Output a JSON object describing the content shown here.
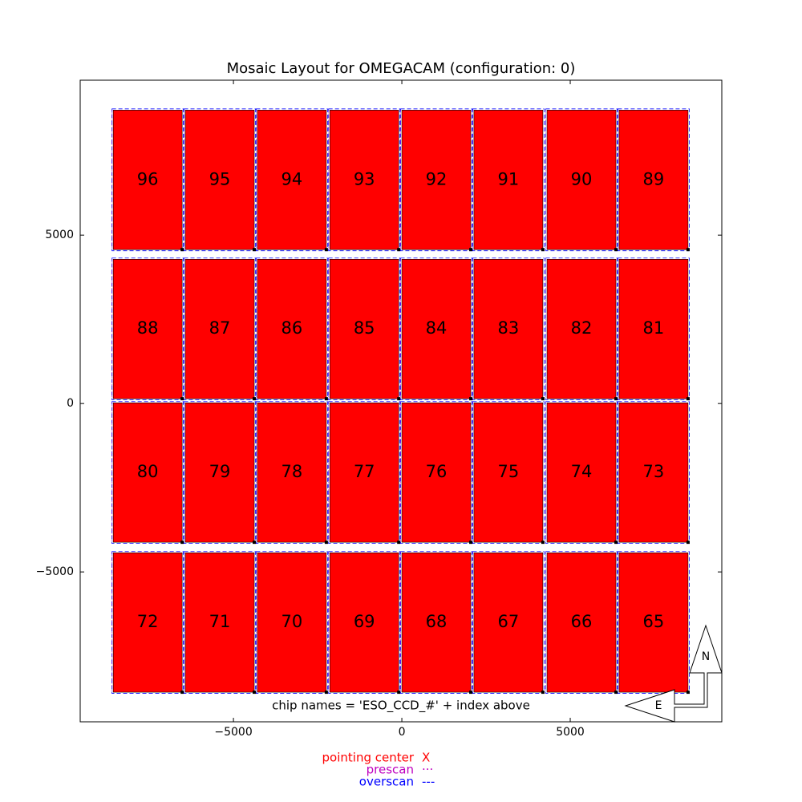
{
  "chart_data": {
    "type": "mosaic",
    "title": "Mosaic Layout for OMEGACAM (configuration: 0)",
    "annotation": "chip names = 'ESO_CCD_#' + index above",
    "xlim": [
      -9550,
      9500
    ],
    "ylim": [
      -9450,
      9600
    ],
    "xticks": [
      {
        "value": -5000,
        "label": "−5000"
      },
      0,
      5000
    ],
    "yticks": [
      {
        "value": -5000,
        "label": "−5000"
      },
      0,
      5000
    ],
    "color": "#ff0000",
    "chip_width": 2048,
    "chip_height": 4140,
    "chips": [
      {
        "label": "96",
        "x": -8570,
        "y": 4571
      },
      {
        "label": "95",
        "x": -6430,
        "y": 4571
      },
      {
        "label": "94",
        "x": -4290,
        "y": 4571
      },
      {
        "label": "93",
        "x": -2140,
        "y": 4571
      },
      {
        "label": "92",
        "x": 0,
        "y": 4571
      },
      {
        "label": "91",
        "x": 2140,
        "y": 4571
      },
      {
        "label": "90",
        "x": 4310,
        "y": 4571
      },
      {
        "label": "89",
        "x": 6450,
        "y": 4571
      },
      {
        "label": "88",
        "x": -8570,
        "y": 143
      },
      {
        "label": "87",
        "x": -6430,
        "y": 143
      },
      {
        "label": "86",
        "x": -4290,
        "y": 143
      },
      {
        "label": "85",
        "x": -2140,
        "y": 143
      },
      {
        "label": "84",
        "x": 0,
        "y": 143
      },
      {
        "label": "83",
        "x": 2140,
        "y": 143
      },
      {
        "label": "82",
        "x": 4310,
        "y": 143
      },
      {
        "label": "81",
        "x": 6450,
        "y": 143
      },
      {
        "label": "80",
        "x": -8570,
        "y": -4119
      },
      {
        "label": "79",
        "x": -6430,
        "y": -4119
      },
      {
        "label": "78",
        "x": -4290,
        "y": -4119
      },
      {
        "label": "77",
        "x": -2140,
        "y": -4119
      },
      {
        "label": "76",
        "x": 0,
        "y": -4119
      },
      {
        "label": "75",
        "x": 2140,
        "y": -4119
      },
      {
        "label": "74",
        "x": 4310,
        "y": -4119
      },
      {
        "label": "73",
        "x": 6450,
        "y": -4119
      },
      {
        "label": "72",
        "x": -8570,
        "y": -8571
      },
      {
        "label": "71",
        "x": -6430,
        "y": -8571
      },
      {
        "label": "70",
        "x": -4290,
        "y": -8571
      },
      {
        "label": "69",
        "x": -2140,
        "y": -8571
      },
      {
        "label": "68",
        "x": 0,
        "y": -8571
      },
      {
        "label": "67",
        "x": 2140,
        "y": -8571
      },
      {
        "label": "66",
        "x": 4310,
        "y": -8571
      },
      {
        "label": "65",
        "x": 6450,
        "y": -8571
      }
    ],
    "compass": {
      "north": "N",
      "east": "E"
    },
    "legend": [
      {
        "label": "pointing center",
        "symbol": "X",
        "color": "#ff0000"
      },
      {
        "label": "prescan",
        "symbol": "···",
        "color": "#bf00bf"
      },
      {
        "label": "overscan",
        "symbol": "---",
        "color": "#0000ff"
      }
    ]
  }
}
